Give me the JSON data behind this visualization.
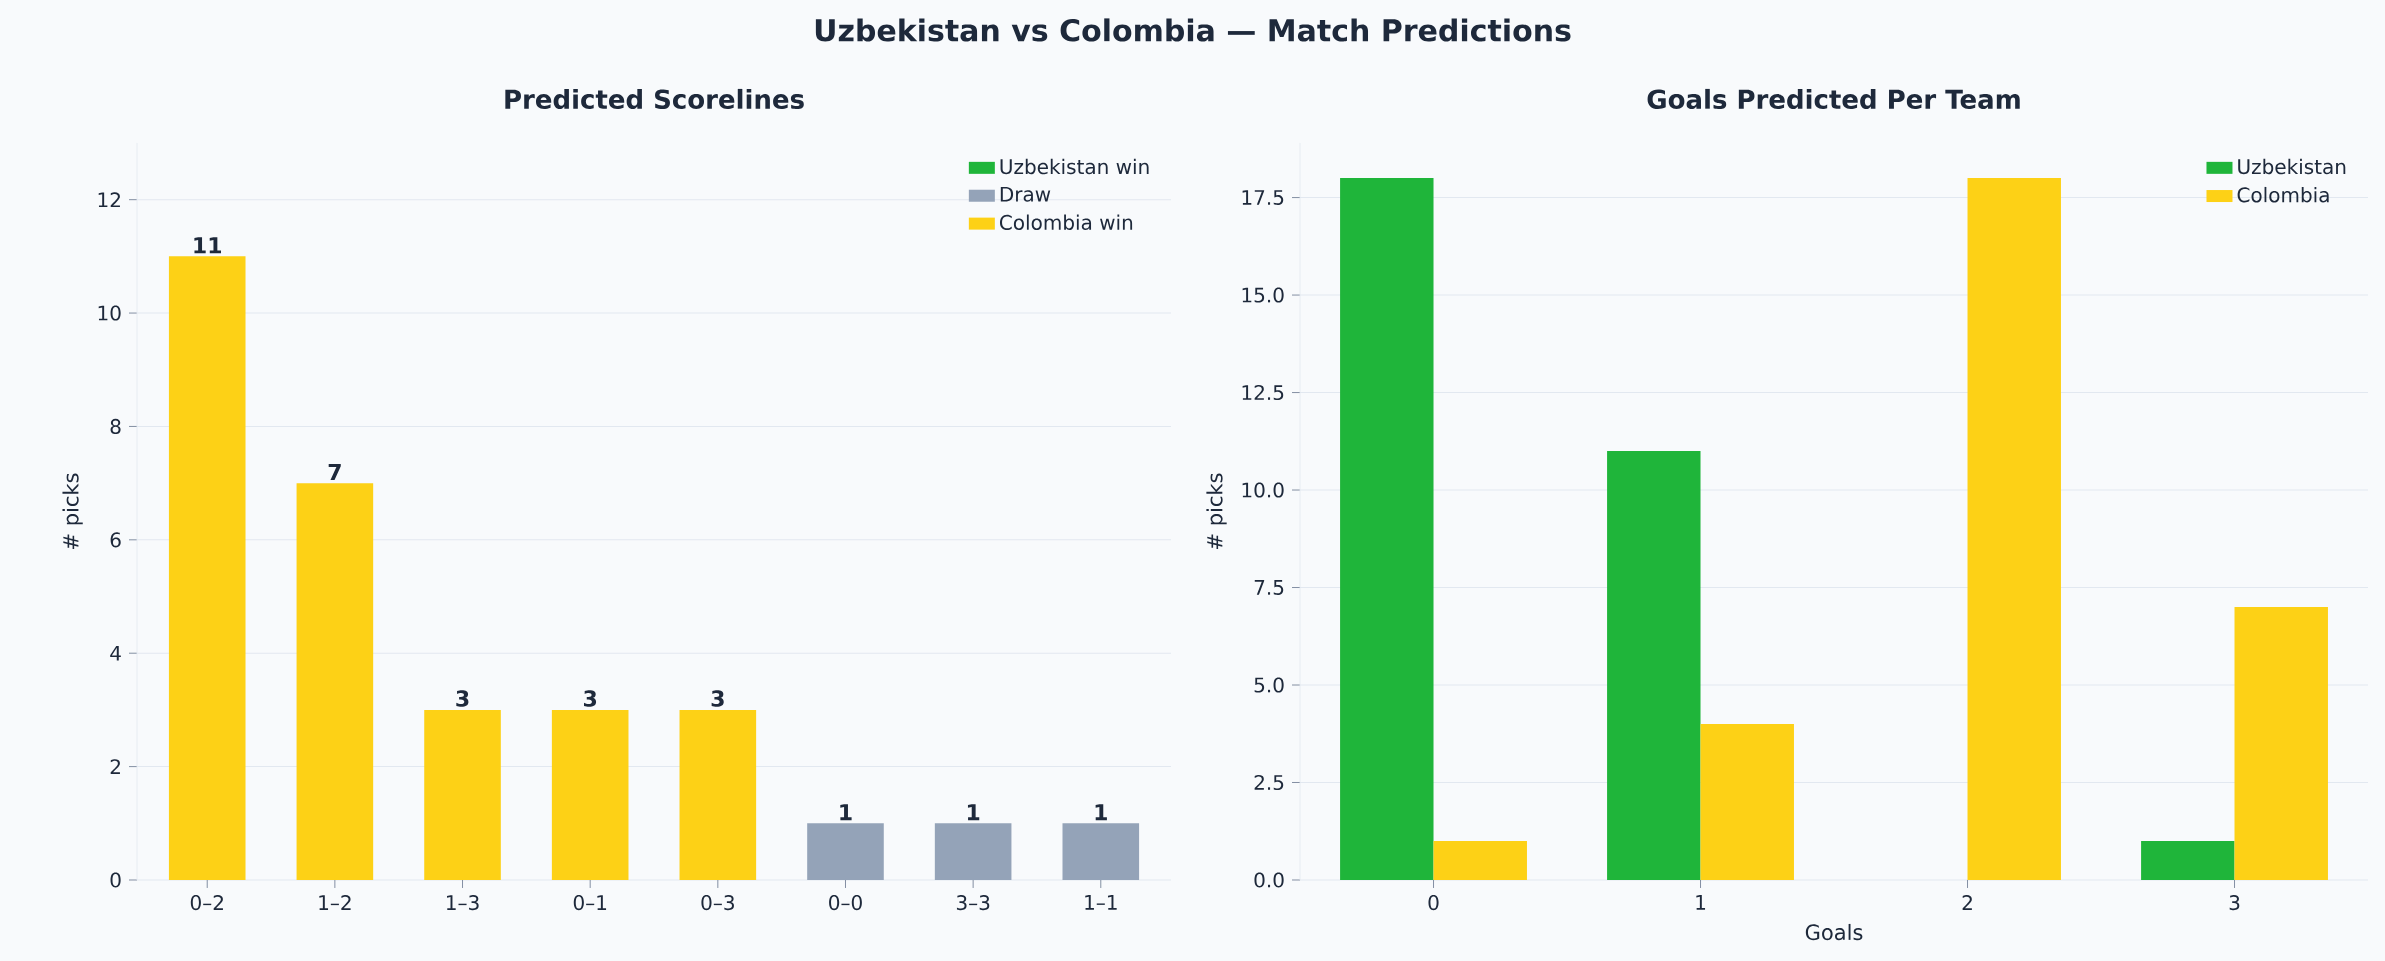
{
  "chart_data": [
    {
      "type": "bar",
      "title": "Predicted Scorelines",
      "ylabel": "# picks",
      "annotations": [
        "Uzbekistan vs Colombia  —  Match Predictions"
      ],
      "categories": [
        "0–2",
        "1–2",
        "1–3",
        "0–1",
        "0–3",
        "0–0",
        "3–3",
        "1–1"
      ],
      "series": [
        {
          "name": "Uzbekistan win",
          "color": "#1fb53a",
          "values": [
            null,
            null,
            null,
            null,
            null,
            null,
            null,
            null
          ]
        },
        {
          "name": "Draw",
          "color": "#94a3b8",
          "values": [
            null,
            null,
            null,
            null,
            null,
            1,
            1,
            1
          ]
        },
        {
          "name": "Colombia win",
          "color": "#fdd116",
          "values": [
            11,
            7,
            3,
            3,
            3,
            null,
            null,
            null
          ]
        }
      ],
      "ylim": [
        0,
        13
      ],
      "yticks": [
        0,
        2,
        4,
        6,
        8,
        10,
        12
      ],
      "grid": "y",
      "legend": "top right",
      "data_labels": true
    },
    {
      "type": "bar",
      "title": "Goals Predicted Per Team",
      "xlabel": "Goals",
      "ylabel": "# picks",
      "categories": [
        "0",
        "1",
        "2",
        "3"
      ],
      "series": [
        {
          "name": "Uzbekistan",
          "color": "#1fb53a",
          "values": [
            18,
            11,
            0,
            1
          ]
        },
        {
          "name": "Colombia",
          "color": "#fdd116",
          "values": [
            1,
            4,
            18,
            7
          ]
        }
      ],
      "ylim": [
        0,
        18.9
      ],
      "yticks": [
        {
          "value": 0,
          "label": "0.0"
        },
        {
          "value": 2.5,
          "label": "2.5"
        },
        {
          "value": 5,
          "label": "5.0"
        },
        {
          "value": 7.5,
          "label": "7.5"
        },
        {
          "value": 10,
          "label": "10.0"
        },
        {
          "value": 12.5,
          "label": "12.5"
        },
        {
          "value": 15,
          "label": "15.0"
        },
        {
          "value": 17.5,
          "label": "17.5"
        }
      ],
      "grid": "y",
      "legend": "top right"
    }
  ]
}
